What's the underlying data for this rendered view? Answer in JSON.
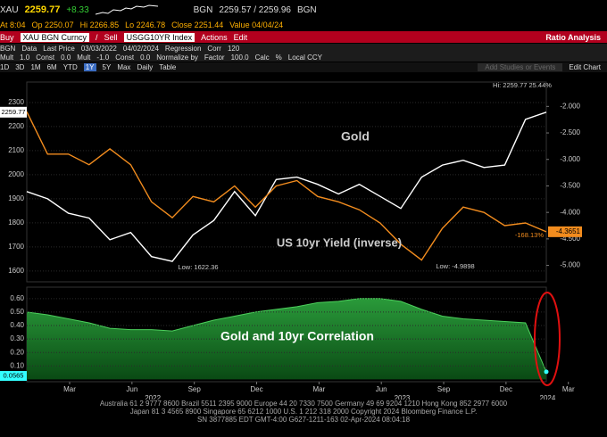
{
  "toolbar": {
    "quote": [
      "XAU",
      "2259.77",
      "+8.33",
      "BGN",
      "2259.57 / 2259.96",
      "BGN"
    ],
    "stats": [
      "At 8:04",
      "Op 2250.07",
      "Hi 2266.85",
      "Lo 2246.78",
      "Close 2251.44",
      "Value 04/04/24"
    ],
    "actions": [
      "Buy",
      "XAU BGN Curncy",
      "/",
      "Sell",
      "USGG10YR Index",
      "Actions",
      "Edit",
      "Ratio Analysis"
    ],
    "data": [
      "BGN",
      "Data",
      "Last Price",
      "03/03/2022",
      "04/02/2024",
      "Regression",
      "Corr",
      "120"
    ],
    "mult": [
      "Mult",
      "1.0",
      "Const",
      "0.0",
      "Mult",
      "-1.0",
      "Const",
      "0.0",
      "Normalize by",
      "Factor",
      "100.0",
      "Calc",
      "%",
      "Local CCY"
    ],
    "periods": [
      "1D",
      "3D",
      "1M",
      "6M",
      "YTD",
      "1Y",
      "5Y",
      "Max",
      "Daily",
      "Table",
      "Add Studies or Events",
      "Edit Chart"
    ]
  },
  "chart_data": [
    {
      "type": "line",
      "x": [
        "2022-03",
        "2022-04",
        "2022-05",
        "2022-06",
        "2022-07",
        "2022-08",
        "2022-09",
        "2022-10",
        "2022-11",
        "2022-12",
        "2023-01",
        "2023-02",
        "2023-03",
        "2023-04",
        "2023-05",
        "2023-06",
        "2023-07",
        "2023-08",
        "2023-09",
        "2023-10",
        "2023-11",
        "2023-12",
        "2024-01",
        "2024-02",
        "2024-03",
        "2024-04"
      ],
      "series": [
        {
          "name": "Gold",
          "color": "#ffffff",
          "values": [
            1930,
            1900,
            1840,
            1820,
            1730,
            1760,
            1660,
            1640,
            1750,
            1810,
            1930,
            1830,
            1980,
            1990,
            1960,
            1920,
            1960,
            1910,
            1860,
            1990,
            2040,
            2060,
            2030,
            2040,
            2230,
            2259.77
          ]
        },
        {
          "name": "US 10yr Yield (inverse)",
          "color": "#f28c1e",
          "axis": "y2",
          "values": [
            -2.1,
            -2.9,
            -2.9,
            -3.1,
            -2.8,
            -3.1,
            -3.8,
            -4.1,
            -3.7,
            -3.8,
            -3.5,
            -3.9,
            -3.5,
            -3.4,
            -3.7,
            -3.8,
            -3.95,
            -4.2,
            -4.6,
            -4.9,
            -4.3,
            -3.9,
            -4.0,
            -4.25,
            -4.2,
            -4.3651
          ]
        }
      ],
      "ylim": [
        1555,
        2385
      ],
      "yticks": [
        1600,
        1700,
        1800,
        1900,
        2000,
        2100,
        2200,
        2300
      ],
      "y2lim": [
        -5.31,
        -1.54
      ],
      "y2ticks": [
        {
          "value": -2,
          "label": "-2.000"
        },
        {
          "value": -2.5,
          "label": "-2.500"
        },
        {
          "value": -3,
          "label": "-3.000"
        },
        {
          "value": -3.5,
          "label": "-3.500"
        },
        {
          "value": -4,
          "label": "-4.000"
        },
        {
          "value": -4.5,
          "label": "-4.500"
        },
        {
          "value": -5,
          "label": "-5.000"
        }
      ],
      "grid": true,
      "annotations": [
        "Hi: 2259.77 25.44%",
        "Low: 1622.36",
        "Low: -4.9898",
        "-168.13%"
      ]
    },
    {
      "type": "area",
      "title": "Gold and 10yr Correlation",
      "x": [
        "2022-03",
        "2022-04",
        "2022-05",
        "2022-06",
        "2022-07",
        "2022-08",
        "2022-09",
        "2022-10",
        "2022-11",
        "2022-12",
        "2023-01",
        "2023-02",
        "2023-03",
        "2023-04",
        "2023-05",
        "2023-06",
        "2023-07",
        "2023-08",
        "2023-09",
        "2023-10",
        "2023-11",
        "2023-12",
        "2024-01",
        "2024-02",
        "2024-03",
        "2024-04"
      ],
      "values": [
        0.5,
        0.48,
        0.45,
        0.42,
        0.38,
        0.37,
        0.37,
        0.36,
        0.4,
        0.44,
        0.47,
        0.5,
        0.52,
        0.54,
        0.57,
        0.58,
        0.6,
        0.6,
        0.58,
        0.52,
        0.47,
        0.45,
        0.44,
        0.43,
        0.42,
        0.0565
      ],
      "color": "#1f8a2e",
      "ylim": [
        -0.017,
        0.685
      ],
      "yticks": [
        {
          "value": 0.1,
          "label": "0.10"
        },
        {
          "value": 0.2,
          "label": "0.20"
        },
        {
          "value": 0.3,
          "label": "0.30"
        },
        {
          "value": 0.4,
          "label": "0.40"
        },
        {
          "value": 0.5,
          "label": "0.50"
        },
        {
          "value": 0.6,
          "label": "0.60"
        }
      ],
      "grid": true,
      "xticks": [
        {
          "value": "2022-03",
          "label": "Mar"
        },
        {
          "value": "2022-06",
          "label": "Jun"
        },
        {
          "value": "2022-09",
          "label": "Sep"
        },
        {
          "value": "2022-12",
          "label": "Dec"
        },
        {
          "value": "2023-03",
          "label": "Mar"
        },
        {
          "value": "2023-06",
          "label": "Jun"
        },
        {
          "value": "2023-09",
          "label": "Sep"
        },
        {
          "value": "2023-12",
          "label": "Dec"
        },
        {
          "value": "2024-03",
          "label": "Mar"
        }
      ],
      "xyears": [
        {
          "value": "2022-07",
          "label": "2022"
        },
        {
          "value": "2023-07",
          "label": "2023"
        },
        {
          "value": "2024-02",
          "label": "2024"
        }
      ]
    }
  ],
  "footer": [
    "Australia 61 2 9777 8600 Brazil 5511 2395 9000 Europe 44 20 7330 7500 Germany 49 69 9204 1210 Hong Kong 852 2977 6000",
    "Japan 81 3 4565 8900 Singapore 65 6212 1000 U.S. 1 212 318 2000 Copyright 2024 Bloomberg Finance L.P.",
    "SN 3877885 EDT GMT-4:00 G627-1211-163 02-Apr-2024 08:04:18"
  ]
}
